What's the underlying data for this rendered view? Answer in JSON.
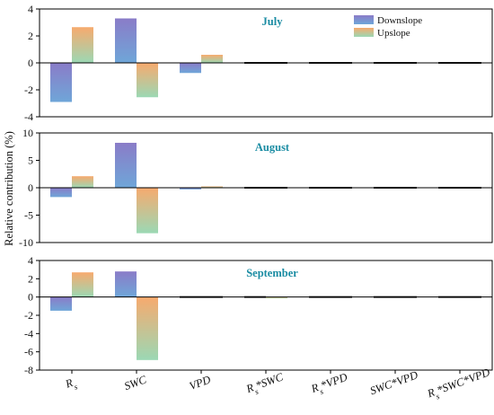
{
  "chart_data": {
    "type": "bar",
    "ylabel": "Relative contribution (%)",
    "categories": [
      "Rs",
      "SWC",
      "VPD",
      "Rs*SWC",
      "Rs*VPD",
      "SWC*VPD",
      "Rs*SWC*VPD"
    ],
    "category_labels": [
      {
        "main": "R",
        "sub": "s",
        "rest": ""
      },
      {
        "main": "SWC",
        "sub": "",
        "rest": ""
      },
      {
        "main": "VPD",
        "sub": "",
        "rest": ""
      },
      {
        "main": "R",
        "sub": "s",
        "rest": "*SWC"
      },
      {
        "main": "R",
        "sub": "s",
        "rest": "*VPD"
      },
      {
        "main": "SWC*VPD",
        "sub": "",
        "rest": ""
      },
      {
        "main": "R",
        "sub": "s",
        "rest": "*SWC*VPD"
      }
    ],
    "legend": {
      "placement": "top-right",
      "items": [
        "Downslope",
        "Upslope"
      ]
    },
    "colors": {
      "downslope_top": "#8a7cc8",
      "downslope_bottom": "#6fa6d8",
      "upslope_top": "#f7aa6e",
      "upslope_bottom": "#9bd8b4",
      "flat_line": "#222222",
      "zero_line": "#000000"
    },
    "panels": [
      {
        "title": "July",
        "ylim": [
          -4,
          4
        ],
        "yticks": [
          -4,
          -2,
          0,
          2,
          4
        ],
        "series": [
          {
            "name": "Downslope",
            "values": [
              -2.9,
              3.3,
              -0.75,
              -0.05,
              0,
              0,
              0.02
            ]
          },
          {
            "name": "Upslope",
            "values": [
              2.65,
              -2.55,
              0.6,
              0.02,
              0,
              0,
              0.02
            ]
          }
        ]
      },
      {
        "title": "August",
        "ylim": [
          -10,
          10
        ],
        "yticks": [
          -10,
          -5,
          0,
          5,
          10
        ],
        "series": [
          {
            "name": "Downslope",
            "values": [
              -1.7,
              8.2,
              -0.3,
              -0.1,
              0.1,
              0,
              0.1
            ]
          },
          {
            "name": "Upslope",
            "values": [
              2.1,
              -8.3,
              0.25,
              0.05,
              0.1,
              0,
              0.1
            ]
          }
        ]
      },
      {
        "title": "September",
        "ylim": [
          -8,
          4
        ],
        "yticks": [
          -8,
          -6,
          -4,
          -2,
          0,
          2,
          4
        ],
        "series": [
          {
            "name": "Downslope",
            "values": [
              -1.5,
              2.8,
              -0.05,
              -0.02,
              0.05,
              0.05,
              0.05
            ]
          },
          {
            "name": "Upslope",
            "values": [
              2.7,
              -6.9,
              0.02,
              -0.15,
              0.05,
              0.05,
              0.05
            ]
          }
        ]
      }
    ]
  }
}
